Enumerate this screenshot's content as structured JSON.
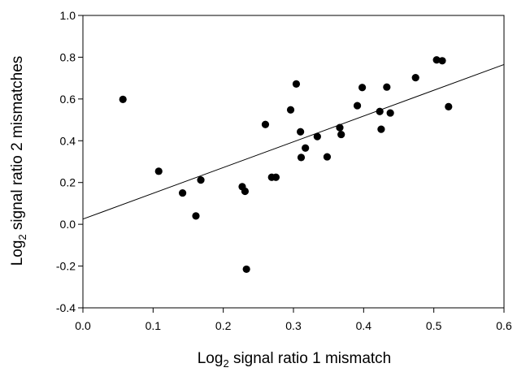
{
  "chart_data": {
    "type": "scatter",
    "title": "",
    "xlabel": {
      "prefix": "Log",
      "subscript": "2",
      "suffix": " signal ratio 1 mismatch"
    },
    "ylabel": {
      "prefix": "Log",
      "subscript": "2",
      "suffix": " signal ratio 2 mismatches"
    },
    "xlim": [
      0.0,
      0.6
    ],
    "ylim": [
      -0.4,
      1.0
    ],
    "xticks": [
      0.0,
      0.1,
      0.2,
      0.3,
      0.4,
      0.5,
      0.6
    ],
    "yticks": [
      -0.4,
      -0.2,
      0.0,
      0.2,
      0.4,
      0.6,
      0.8,
      1.0
    ],
    "xtick_labels": [
      "0.0",
      "0.1",
      "0.2",
      "0.3",
      "0.4",
      "0.5",
      "0.6"
    ],
    "ytick_labels": [
      "-0.4",
      "-0.2",
      "0.0",
      "0.2",
      "0.4",
      "0.6",
      "0.8",
      "1.0"
    ],
    "grid": false,
    "legend": "none",
    "points": [
      {
        "x": 0.057,
        "y": 0.598
      },
      {
        "x": 0.108,
        "y": 0.254
      },
      {
        "x": 0.142,
        "y": 0.15
      },
      {
        "x": 0.161,
        "y": 0.04
      },
      {
        "x": 0.168,
        "y": 0.212
      },
      {
        "x": 0.227,
        "y": 0.18
      },
      {
        "x": 0.231,
        "y": 0.158
      },
      {
        "x": 0.233,
        "y": -0.215
      },
      {
        "x": 0.26,
        "y": 0.478
      },
      {
        "x": 0.269,
        "y": 0.225
      },
      {
        "x": 0.275,
        "y": 0.225
      },
      {
        "x": 0.296,
        "y": 0.548
      },
      {
        "x": 0.304,
        "y": 0.672
      },
      {
        "x": 0.31,
        "y": 0.443
      },
      {
        "x": 0.311,
        "y": 0.32
      },
      {
        "x": 0.317,
        "y": 0.365
      },
      {
        "x": 0.334,
        "y": 0.42
      },
      {
        "x": 0.348,
        "y": 0.323
      },
      {
        "x": 0.366,
        "y": 0.463
      },
      {
        "x": 0.368,
        "y": 0.43
      },
      {
        "x": 0.391,
        "y": 0.568
      },
      {
        "x": 0.398,
        "y": 0.655
      },
      {
        "x": 0.423,
        "y": 0.54
      },
      {
        "x": 0.425,
        "y": 0.455
      },
      {
        "x": 0.433,
        "y": 0.657
      },
      {
        "x": 0.438,
        "y": 0.533
      },
      {
        "x": 0.474,
        "y": 0.702
      },
      {
        "x": 0.504,
        "y": 0.787
      },
      {
        "x": 0.512,
        "y": 0.783
      },
      {
        "x": 0.521,
        "y": 0.563
      }
    ],
    "fit_line": {
      "x": [
        0.0,
        0.6
      ],
      "y": [
        0.025,
        0.765
      ]
    },
    "colors": {
      "points": "#000000",
      "line": "#000000",
      "axes": "#000000"
    }
  }
}
